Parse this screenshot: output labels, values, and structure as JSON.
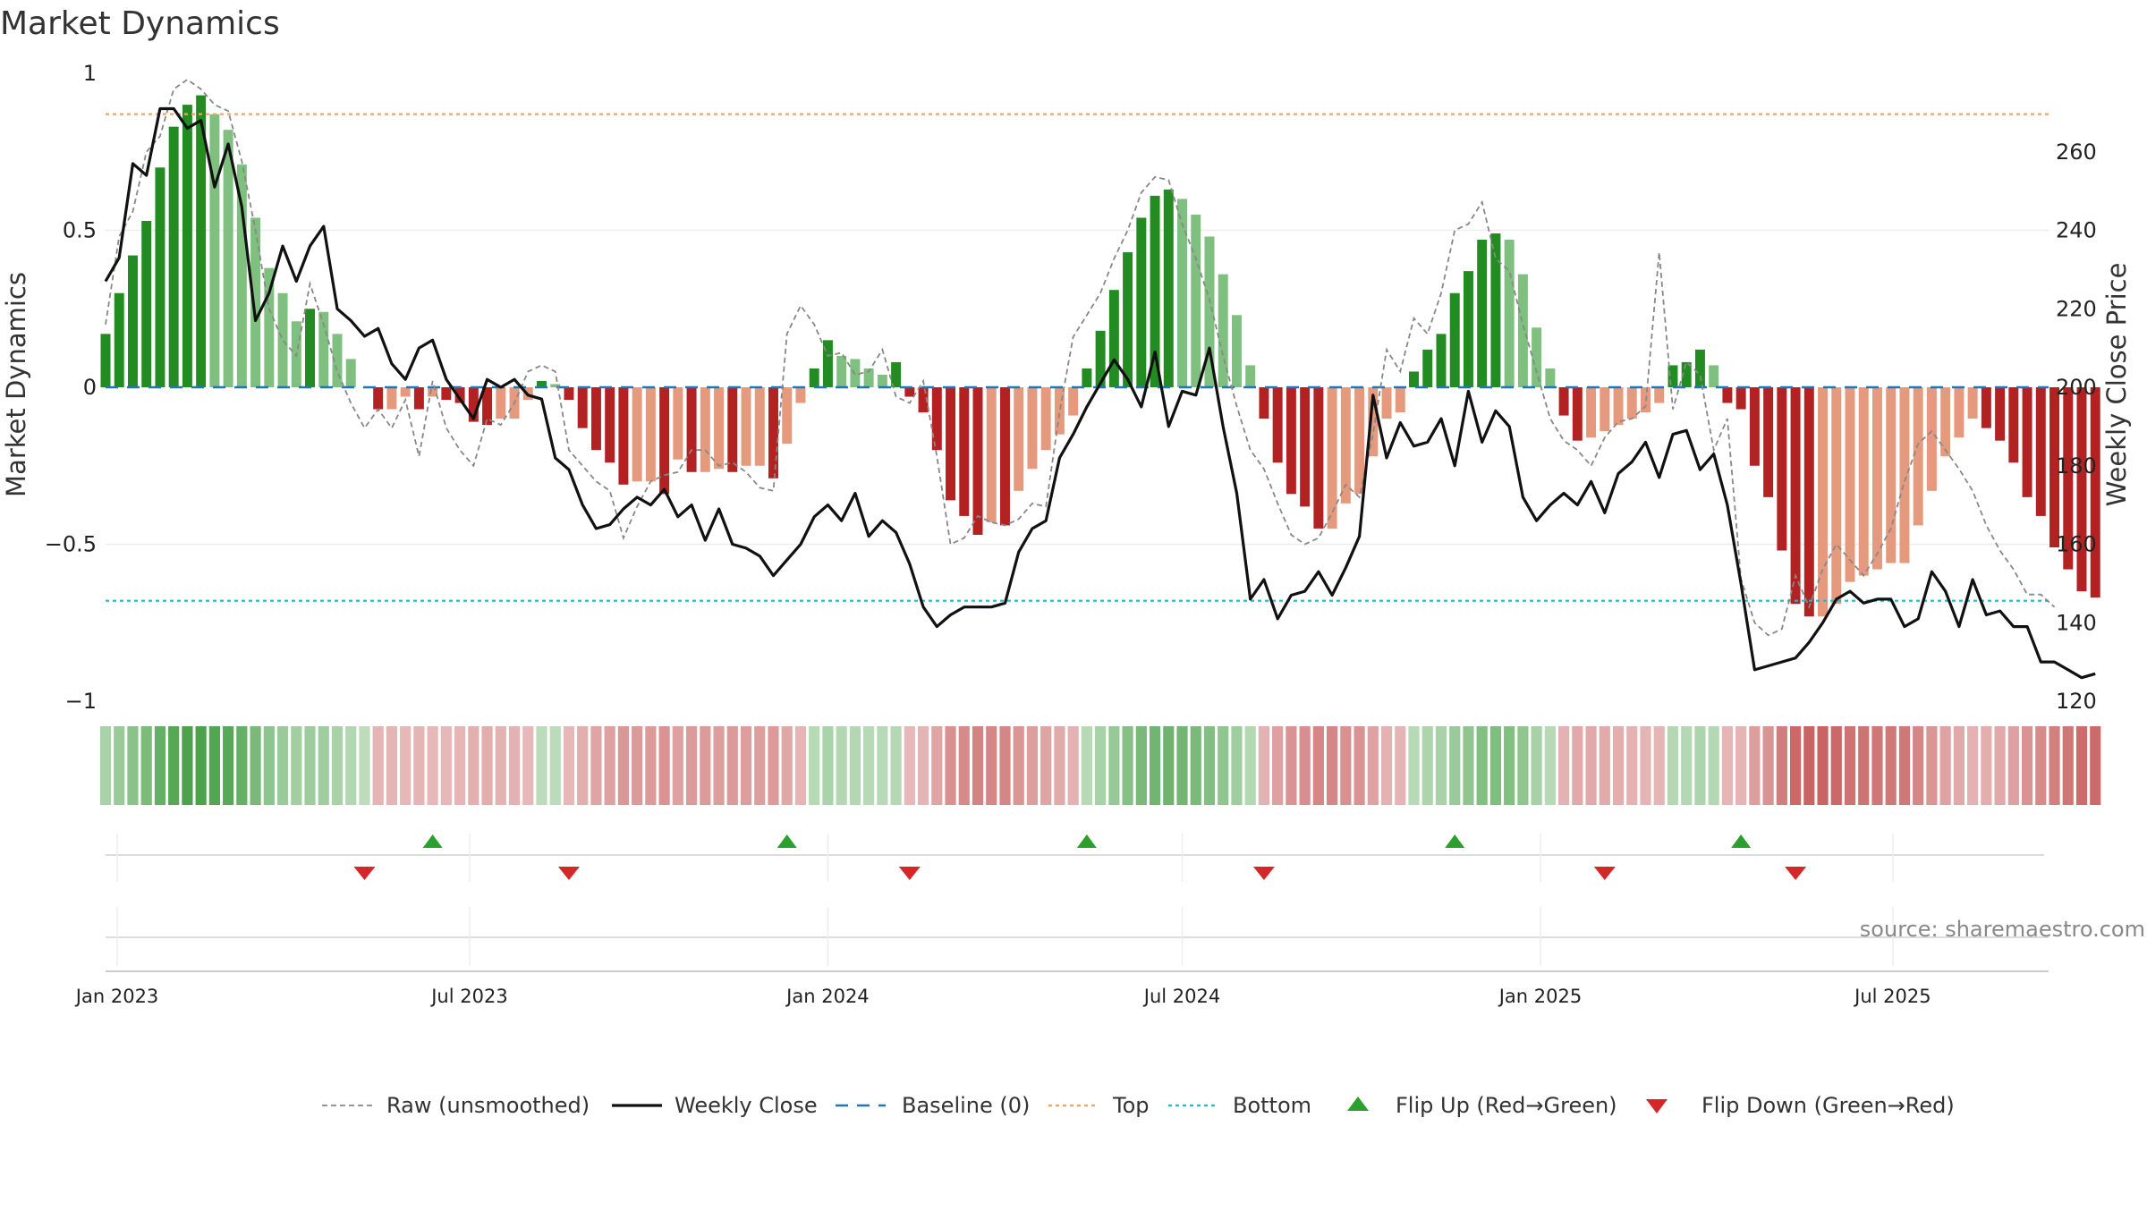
{
  "chart_data": {
    "type": "bar",
    "title": "Market Dynamics",
    "ylabel": "Market Dynamics",
    "y2label": "Weekly Close Price",
    "ylim": [
      -1,
      1
    ],
    "y2lim": [
      120,
      280
    ],
    "yticks": [
      "1",
      "0.5",
      "0",
      "−0.5",
      "−1"
    ],
    "y2ticks": [
      "260",
      "240",
      "220",
      "200",
      "180",
      "160",
      "140",
      "120"
    ],
    "xlim": [
      "2022-12-26",
      "2025-09-19"
    ],
    "xticks": [
      {
        "date": "2023-01-01",
        "label": "Jan 2023"
      },
      {
        "date": "2023-07-01",
        "label": "Jul 2023"
      },
      {
        "date": "2024-01-01",
        "label": "Jan 2024"
      },
      {
        "date": "2024-07-01",
        "label": "Jul 2024"
      },
      {
        "date": "2025-01-01",
        "label": "Jan 2025"
      },
      {
        "date": "2025-07-01",
        "label": "Jul 2025"
      }
    ],
    "start_date": "2022-12-26",
    "week_step_days": 7,
    "top_line": 0.87,
    "bottom_line": -0.68,
    "baseline": 0,
    "grid": true,
    "legend_position": "bottom",
    "colors": {
      "dark_green": "#228b22",
      "light_green": "#7fbf7f",
      "dark_red": "#b22222",
      "light_red": "#e59a7d",
      "raw": "#888888",
      "close": "#111111",
      "baseline": "#1f77b4",
      "top": "#f4a460",
      "bottom": "#17becf",
      "flip_up": "#2ca02c",
      "flip_down": "#d62728"
    },
    "series": [
      {
        "name": "Market Dynamics",
        "values": [
          0.17,
          0.3,
          0.42,
          0.53,
          0.7,
          0.83,
          0.9,
          0.93,
          0.87,
          0.82,
          0.71,
          0.54,
          0.38,
          0.3,
          0.21,
          0.25,
          0.24,
          0.17,
          0.09,
          0,
          -0.07,
          -0.07,
          -0.03,
          -0.07,
          -0.03,
          -0.04,
          -0.05,
          -0.11,
          -0.12,
          -0.1,
          -0.1,
          -0.04,
          0.02,
          0.01,
          -0.04,
          -0.13,
          -0.2,
          -0.24,
          -0.31,
          -0.3,
          -0.3,
          -0.34,
          -0.23,
          -0.27,
          -0.27,
          -0.26,
          -0.27,
          -0.25,
          -0.25,
          -0.29,
          -0.18,
          -0.05,
          0.06,
          0.15,
          0.1,
          0.09,
          0.06,
          0.04,
          0.08,
          -0.03,
          -0.08,
          -0.2,
          -0.36,
          -0.41,
          -0.47,
          -0.43,
          -0.44,
          -0.33,
          -0.26,
          -0.2,
          -0.15,
          -0.09,
          0.06,
          0.18,
          0.31,
          0.43,
          0.54,
          0.61,
          0.63,
          0.6,
          0.55,
          0.48,
          0.36,
          0.23,
          0.07,
          -0.1,
          -0.24,
          -0.34,
          -0.38,
          -0.45,
          -0.45,
          -0.37,
          -0.34,
          -0.22,
          -0.1,
          -0.08,
          0.05,
          0.12,
          0.17,
          0.3,
          0.37,
          0.47,
          0.49,
          0.47,
          0.36,
          0.19,
          0.06,
          -0.09,
          -0.17,
          -0.16,
          -0.14,
          -0.12,
          -0.1,
          -0.08,
          -0.05,
          0.07,
          0.08,
          0.12,
          0.07,
          -0.05,
          -0.07,
          -0.25,
          -0.35,
          -0.52,
          -0.69,
          -0.73,
          -0.73,
          -0.69,
          -0.62,
          -0.6,
          -0.58,
          -0.56,
          -0.56,
          -0.44,
          -0.33,
          -0.22,
          -0.16,
          -0.1,
          -0.13,
          -0.17,
          -0.24,
          -0.35,
          -0.41,
          -0.51,
          -0.58,
          -0.65,
          -0.67
        ]
      },
      {
        "name": "Raw (unsmoothed)",
        "values": [
          0.2,
          0.48,
          0.56,
          0.75,
          0.8,
          0.95,
          0.98,
          0.95,
          0.9,
          0.88,
          0.72,
          0.5,
          0.25,
          0.15,
          0.1,
          0.33,
          0.2,
          0.05,
          -0.05,
          -0.13,
          -0.07,
          -0.13,
          -0.04,
          -0.22,
          0.02,
          -0.13,
          -0.2,
          -0.25,
          -0.1,
          -0.12,
          -0.05,
          0.05,
          0.07,
          0.05,
          -0.2,
          -0.25,
          -0.3,
          -0.33,
          -0.48,
          -0.38,
          -0.3,
          -0.28,
          -0.27,
          -0.2,
          -0.2,
          -0.25,
          -0.24,
          -0.27,
          -0.32,
          -0.33,
          0.17,
          0.26,
          0.2,
          0.1,
          0.11,
          0.04,
          0.05,
          0.12,
          -0.03,
          -0.05,
          0.02,
          -0.22,
          -0.5,
          -0.48,
          -0.41,
          -0.43,
          -0.44,
          -0.42,
          -0.37,
          -0.38,
          -0.08,
          0.16,
          0.23,
          0.3,
          0.41,
          0.5,
          0.62,
          0.67,
          0.66,
          0.52,
          0.41,
          0.28,
          0.1,
          -0.06,
          -0.2,
          -0.26,
          -0.37,
          -0.47,
          -0.5,
          -0.48,
          -0.4,
          -0.31,
          -0.35,
          -0.15,
          0.12,
          0.05,
          0.22,
          0.17,
          0.3,
          0.5,
          0.52,
          0.59,
          0.41,
          0.37,
          0.2,
          0.05,
          -0.1,
          -0.17,
          -0.2,
          -0.25,
          -0.16,
          -0.11,
          -0.1,
          -0.06,
          0.43,
          -0.07,
          0.08,
          0.04,
          -0.2,
          -0.1,
          -0.61,
          -0.75,
          -0.79,
          -0.77,
          -0.6,
          -0.7,
          -0.58,
          -0.5,
          -0.55,
          -0.6,
          -0.53,
          -0.45,
          -0.3,
          -0.18,
          -0.14,
          -0.2,
          -0.26,
          -0.33,
          -0.44,
          -0.52,
          -0.58,
          -0.66,
          -0.66,
          -0.7
        ]
      },
      {
        "name": "Weekly Close",
        "axis": "right",
        "values": [
          227,
          233,
          257,
          254,
          271,
          271,
          266,
          268,
          251,
          262,
          246,
          217,
          224,
          236,
          227,
          236,
          241,
          220,
          217,
          213,
          215,
          206,
          202,
          210,
          212,
          202,
          197,
          192,
          202,
          200,
          202,
          198,
          197,
          182,
          179,
          170,
          164,
          165,
          169,
          172,
          170,
          174,
          167,
          170,
          161,
          169,
          160,
          159,
          157,
          152,
          156,
          160,
          167,
          170,
          166,
          173,
          162,
          166,
          163,
          155,
          144,
          139,
          142,
          144,
          144,
          144,
          145,
          158,
          164,
          166,
          182,
          188,
          195,
          201,
          207,
          202,
          195,
          209,
          190,
          199,
          198,
          210,
          190,
          173,
          146,
          151,
          141,
          147,
          148,
          153,
          147,
          154,
          162,
          198,
          182,
          191,
          185,
          186,
          192,
          180,
          199,
          186,
          194,
          190,
          172,
          166,
          170,
          173,
          170,
          176,
          168,
          178,
          181,
          186,
          177,
          188,
          189,
          179,
          183,
          170,
          150,
          128,
          129,
          130,
          131,
          135,
          140,
          146,
          148,
          145,
          146,
          146,
          139,
          141,
          153,
          148,
          139,
          151,
          142,
          143,
          139,
          139,
          130,
          130,
          128,
          126,
          127
        ]
      }
    ],
    "flip_up_weeks": [
      24,
      50,
      72,
      99,
      120
    ],
    "flip_down_weeks": [
      19,
      34,
      59,
      85,
      110,
      124
    ],
    "legend": [
      {
        "key": "raw",
        "label": "Raw (unsmoothed)"
      },
      {
        "key": "close",
        "label": "Weekly Close"
      },
      {
        "key": "baseline",
        "label": "Baseline (0)"
      },
      {
        "key": "top",
        "label": "Top"
      },
      {
        "key": "bottom",
        "label": "Bottom"
      },
      {
        "key": "flip_up",
        "label": "Flip Up (Red→Green)"
      },
      {
        "key": "flip_down",
        "label": "Flip Down (Green→Red)"
      }
    ],
    "source": "source: sharemaestro.com"
  }
}
